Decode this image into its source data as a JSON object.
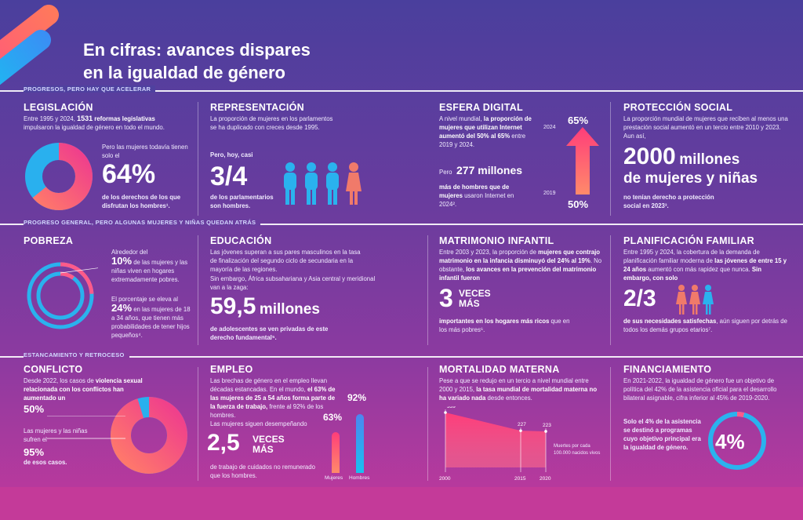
{
  "title": {
    "line1": "En cifras: avances dispares",
    "line2": "en la igualdad de género"
  },
  "bands": [
    "Progresos, pero hay que acelerar",
    "Progreso general, pero algunas mujeres y niñas quedan atrás",
    "Estancamiento y retroceso"
  ],
  "legislacion": {
    "h": "LEGISLACIÓN",
    "p1a": "Entre 1995 y 2024, ",
    "p1b": "1531",
    "p1c": " reformas legislativas",
    "p1d": "impulsaron la igualdad de género en todo el mundo.",
    "p2": "Pero las mujeres todavía tienen solo el",
    "big": "64%",
    "p3": "de los derechos de los que disfrutan los hombres¹.",
    "value": 0.64
  },
  "representacion": {
    "h": "REPRESENTACIÓN",
    "p1": "La proporción de mujeres en los parlamentos se ha duplicado con creces desde 1995.",
    "p2": "Pero, hoy, casi",
    "big": "3/4",
    "p3": "de los parlamentarios son hombres."
  },
  "digital": {
    "h": "ESFERA DIGITAL",
    "p1a": "A nivel mundial, ",
    "p1b": "la proporción de mujeres que utilizan Internet aumentó del 50% al 65%",
    "p1c": " entre 2019 y 2024.",
    "p2a": "Pero ",
    "big": "277 millones",
    "p2b": "más de hombres que de mujeres",
    "p2c": " usaron Internet en 2024².",
    "y2024": "2024",
    "v2024": "65%",
    "y2019": "2019",
    "v2019": "50%"
  },
  "proteccion": {
    "h": "PROTECCIÓN SOCIAL",
    "p1": "La proporción mundial de mujeres que reciben al menos una prestación social aumentó en un tercio entre 2010 y 2023. Aun así,",
    "big1": "2000",
    "big2": "millones",
    "big3": "de mujeres y niñas",
    "p2": "no tenían derecho a protección social en 2023³."
  },
  "pobreza": {
    "h": "POBREZA",
    "p1": "Alrededor del",
    "b1": "10%",
    "p2": "de las mujeres y las niñas viven en hogares extremadamente pobres.",
    "p3": "El porcentaje se eleva al",
    "b2": "24%",
    "p4": "en las mujeres de 18 a 34 años, que tienen más probabilidades de tener hijos pequeños⁴.",
    "v1": 0.1,
    "v2": 0.24
  },
  "educacion": {
    "h": "EDUCACIÓN",
    "p1": "Las jóvenes superan a sus pares masculinos en la tasa de finalización del segundo ciclo de secundaria en la mayoría de las regiones.",
    "p2": "Sin embargo, África subsahariana y Asia central y meridional van a la zaga:",
    "big1": "59,5",
    "big2": "millones",
    "p3": "de adolescentes se ven privadas de este derecho fundamental⁵."
  },
  "matrimonio": {
    "h": "MATRIMONIO INFANTIL",
    "p1a": "Entre 2003 y 2023, la proporción de ",
    "p1b": "mujeres que contrajo matrimonio en la infancia disminuyó del 24% al 19%",
    "p1c": ". No obstante, ",
    "p1d": "los avances en la prevención del matrimonio infantil fueron",
    "big": "3",
    "b2": "VECES",
    "b3": "MÁS",
    "p2a": "importantes en los hogares más ricos",
    "p2b": " que en los más pobres⁶."
  },
  "planificacion": {
    "h": "PLANIFICACIÓN FAMILIAR",
    "p1a": "Entre 1995 y 2024, la cobertura de la demanda de planificación familiar moderna de ",
    "p1b": "las jóvenes de entre 15 y 24 años",
    "p1c": " aumentó con más rapidez que nunca. ",
    "p1d": "Sin embargo, con solo",
    "big": "2/3",
    "p2a": "de sus necesidades satisfechas",
    "p2b": ", aún siguen por detrás de todos los demás grupos etarios⁷."
  },
  "conflicto": {
    "h": "CONFLICTO",
    "p1a": "Desde 2022, los casos de ",
    "p1b": "violencia sexual relacionada con los conflictos",
    "p1c": " han aumentado un",
    "b1": "50%",
    "p2": "Las mujeres y las niñas sufren el",
    "b2": "95%",
    "p3": "de esos casos.",
    "value": 0.95
  },
  "empleo": {
    "h": "EMPLEO",
    "p1": "Las brechas de género en el empleo llevan décadas estancadas. En el mundo,",
    "p2": "el 63% de las mujeres de 25 a 54 años forma parte de la fuerza de trabajo,",
    "p3": "frente al 92% de los hombres.",
    "p4": "Las mujeres siguen desempeñando",
    "big": "2,5",
    "b2": "VECES",
    "b3": "MÁS",
    "p5": "de trabajo de cuidados no remunerado que los hombres.",
    "v_m": "63%",
    "v_h": "92%",
    "l_m": "Mujeres",
    "l_h": "Hombres",
    "vm": 63,
    "vh": 92
  },
  "mortalidad": {
    "h": "MORTALIDAD MATERNA",
    "p1a": "Pese a que se redujo en un tercio a nivel mundial entre 2000 y 2015, ",
    "p1b": "la tasa mundial de mortalidad materna no ha variado nada",
    "p1c": " desde entonces.",
    "note": "Muertes por cada 100.000 nacidos vivos",
    "chart_data": {
      "type": "area",
      "x": [
        "2000",
        "2015",
        "2020"
      ],
      "values": [
        339,
        227,
        223
      ],
      "labels": [
        "339",
        "227",
        "223"
      ]
    }
  },
  "financiamiento": {
    "h": "FINANCIAMIENTO",
    "p1": "En 2021-2022, la igualdad de género fue un objetivo de política del 42% de la asistencia oficial para el desarrollo bilateral asignable, cifra inferior al 45% de 2019-2020.",
    "p2": "Solo el 4% de la asistencia se destinó a programas cuyo objetivo principal era la igualdad de género.",
    "big": "4%",
    "value": 0.04
  }
}
